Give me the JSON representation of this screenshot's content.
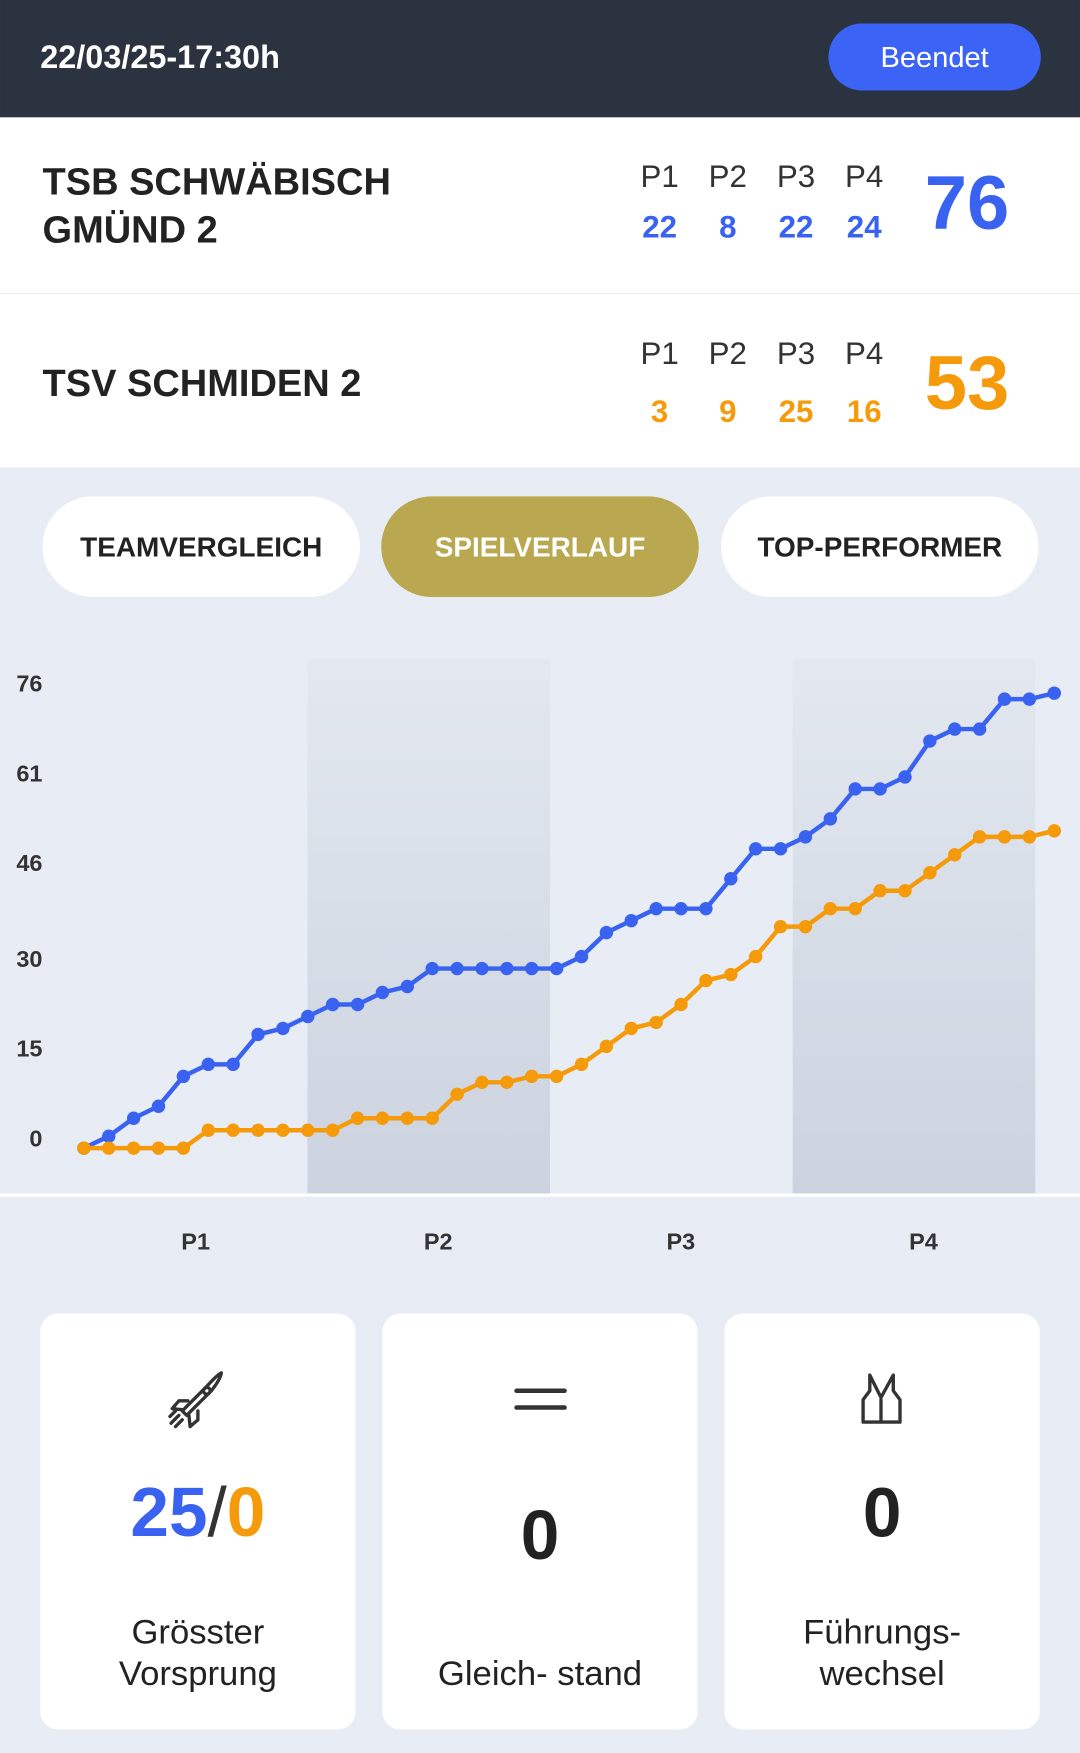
{
  "header": {
    "datetime": "22/03/25-17:30h",
    "status": "Beendet"
  },
  "period_labels": [
    "P1",
    "P2",
    "P3",
    "P4"
  ],
  "teams": [
    {
      "name": "TSB SCHWÄBISCH GMÜND 2",
      "periods": [
        22,
        8,
        22,
        24
      ],
      "total": 76,
      "color": "#3a62f0"
    },
    {
      "name": "TSV SCHMIDEN 2",
      "periods": [
        3,
        9,
        25,
        16
      ],
      "total": 53,
      "color": "#f59b0b"
    }
  ],
  "tabs": [
    "TEAMVERGLEICH",
    "SPIELVERLAUF",
    "TOP-PERFORMER"
  ],
  "active_tab": 1,
  "chart_data": {
    "type": "line",
    "ylim": [
      0,
      76
    ],
    "yticks": [
      0,
      15,
      30,
      46,
      61,
      76
    ],
    "series": [
      {
        "color": "#3a62f0",
        "values": [
          0,
          2,
          5,
          7,
          12,
          14,
          14,
          19,
          20,
          22,
          24,
          24,
          26,
          27,
          30,
          30,
          30,
          30,
          30,
          30,
          32,
          36,
          38,
          40,
          40,
          40,
          45,
          50,
          50,
          52,
          55,
          60,
          60,
          62,
          68,
          70,
          70,
          75,
          75,
          76
        ]
      },
      {
        "color": "#f59b0b",
        "values": [
          0,
          0,
          0,
          0,
          0,
          3,
          3,
          3,
          3,
          3,
          3,
          5,
          5,
          5,
          5,
          9,
          11,
          11,
          12,
          12,
          14,
          17,
          20,
          21,
          24,
          28,
          29,
          32,
          37,
          37,
          40,
          40,
          43,
          43,
          46,
          49,
          52,
          52,
          52,
          53
        ]
      }
    ]
  },
  "stats": [
    {
      "value": 25,
      "separator": "/",
      "value2": 0,
      "label": "Grösster Vorsprung"
    },
    {
      "value": 0,
      "label": "Gleich- stand"
    },
    {
      "value": 0,
      "label": "Führungs- wechsel"
    }
  ]
}
